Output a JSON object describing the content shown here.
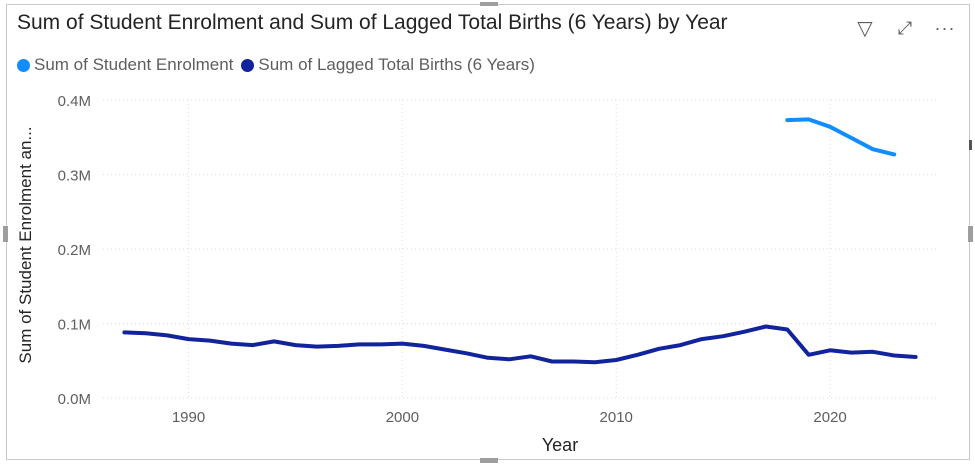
{
  "colors": {
    "series_enrolment": "#118DFF",
    "series_births": "#12239E",
    "grid": "#dcdcdc",
    "text": "#605e5c"
  },
  "header": {
    "icons": [
      "filter-icon",
      "focus-mode-icon",
      "more-options-icon"
    ],
    "filter_glyph": "▽",
    "focus_glyph": "⤢",
    "more_glyph": "···"
  },
  "chart_data": {
    "type": "line",
    "title": "Sum of Student Enrolment and Sum of Lagged Total Births (6 Years) by Year",
    "xlabel": "Year",
    "ylabel": "Sum of Student Enrolment an...",
    "xlim": [
      1986,
      2025
    ],
    "ylim": [
      0,
      400000
    ],
    "xticks": [
      1990,
      2000,
      2010,
      2020
    ],
    "yticks": [
      0,
      100000,
      200000,
      300000,
      400000
    ],
    "ytick_labels": [
      "0.0M",
      "0.1M",
      "0.2M",
      "0.3M",
      "0.4M"
    ],
    "grid": true,
    "legend_position": "top-left",
    "series": [
      {
        "name": "Sum of Student Enrolment",
        "color": "#118DFF",
        "x": [
          2018,
          2019,
          2020,
          2021,
          2022,
          2023
        ],
        "values": [
          373000,
          374000,
          364000,
          349000,
          334000,
          327000
        ]
      },
      {
        "name": "Sum of Lagged Total Births (6 Years)",
        "color": "#12239E",
        "x": [
          1987,
          1988,
          1989,
          1990,
          1991,
          1992,
          1993,
          1994,
          1995,
          1996,
          1997,
          1998,
          1999,
          2000,
          2001,
          2002,
          2003,
          2004,
          2005,
          2006,
          2007,
          2008,
          2009,
          2010,
          2011,
          2012,
          2013,
          2014,
          2015,
          2016,
          2017,
          2018,
          2019,
          2020,
          2021,
          2022,
          2023,
          2024
        ],
        "values": [
          88000,
          87000,
          84000,
          79000,
          77000,
          73000,
          71000,
          76000,
          71000,
          69000,
          70000,
          72000,
          72000,
          73000,
          70000,
          65000,
          60000,
          54000,
          52000,
          56000,
          49000,
          49000,
          48000,
          51000,
          58000,
          66000,
          71000,
          79000,
          83000,
          89000,
          96000,
          92000,
          58000,
          64000,
          61000,
          62000,
          57000,
          55000
        ]
      }
    ]
  }
}
